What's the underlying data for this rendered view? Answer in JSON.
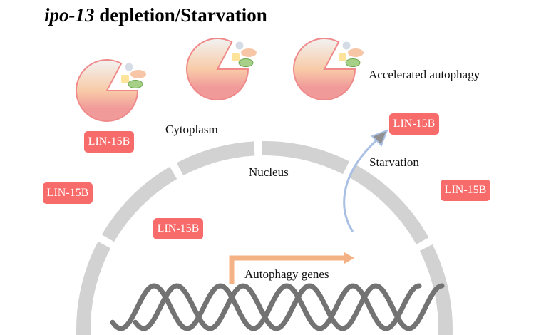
{
  "title": {
    "gene": "ipo-13",
    "rest": " depletion/Starvation"
  },
  "labels": {
    "accelerated": "Accelerated autophagy",
    "cytoplasm": "Cytoplasm",
    "nucleus": "Nucleus",
    "starvation": "Starvation",
    "genes": "Autophagy genes"
  },
  "proteins": [
    "LIN-15B",
    "LIN-15B",
    "LIN-15B",
    "LIN-15B",
    "LIN-15B"
  ],
  "colors": {
    "protein": "#f76b6b",
    "envelope": "#d2d2d2",
    "dna": "#737373",
    "gene_arrow": "#f4b183",
    "starvation_arrow": "#a9c0e4"
  }
}
